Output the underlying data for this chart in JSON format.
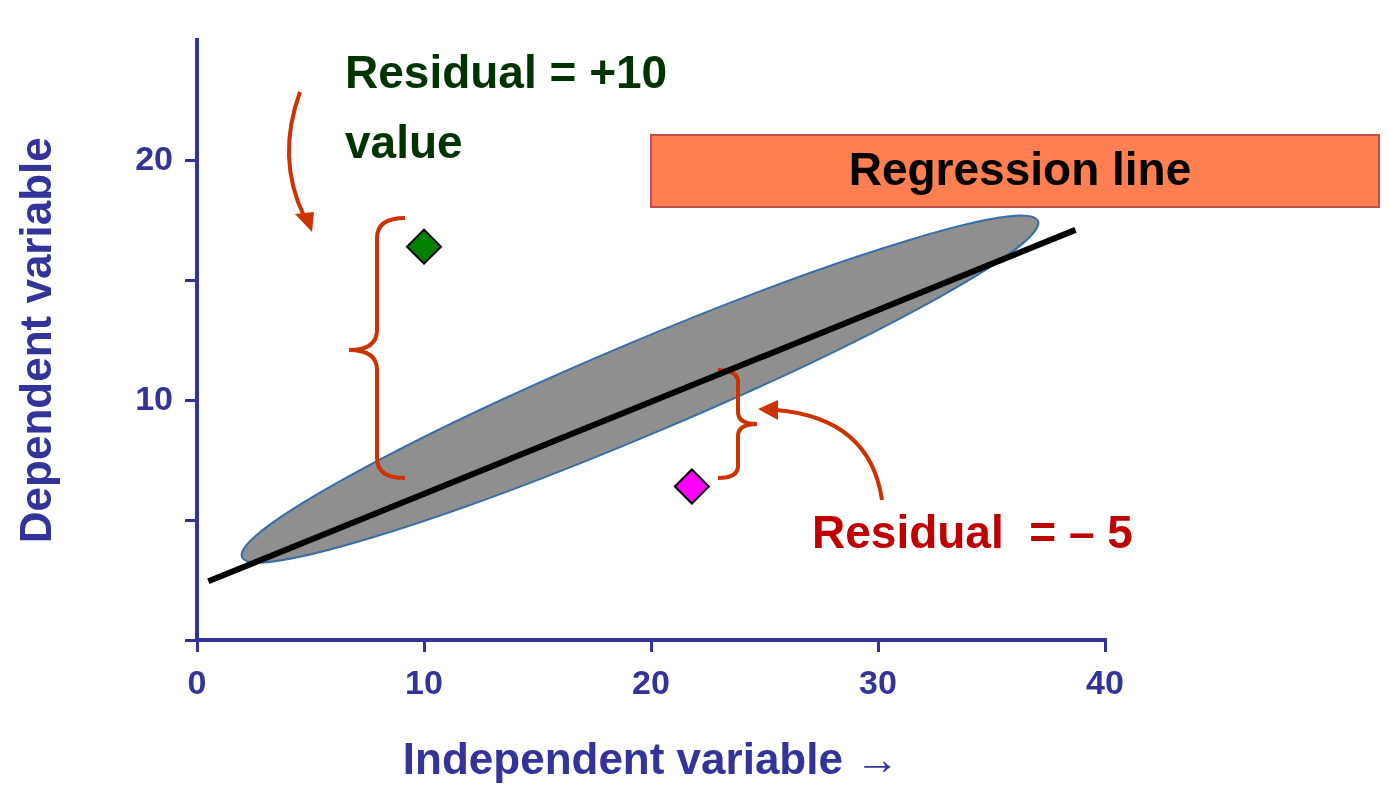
{
  "chart_data": {
    "type": "scatter",
    "xlabel": "Independent variable →",
    "ylabel": "Dependent variable",
    "xlim": [
      0,
      40
    ],
    "ylim": [
      0,
      25
    ],
    "xticks": [
      0,
      10,
      20,
      30,
      40
    ],
    "yticks": [
      {
        "value": 0,
        "label": null
      },
      {
        "value": 5,
        "label": null
      },
      10,
      {
        "value": 15,
        "label": null
      },
      20
    ],
    "grid": false,
    "legend": false,
    "series": [
      {
        "type": "line",
        "name": "Regression line",
        "color": "#000000",
        "marker": "none",
        "x": [
          0.5,
          38.7
        ],
        "values": [
          2.45,
          17.1
        ]
      },
      {
        "marker": "diamond",
        "colors": [
          "#008000",
          "#ff00ff"
        ],
        "x": [
          10,
          21.8
        ],
        "values": [
          16.4,
          6.4
        ]
      }
    ],
    "annotations": [
      "Residual = +10 value",
      "Residual  = – 5"
    ]
  }
}
